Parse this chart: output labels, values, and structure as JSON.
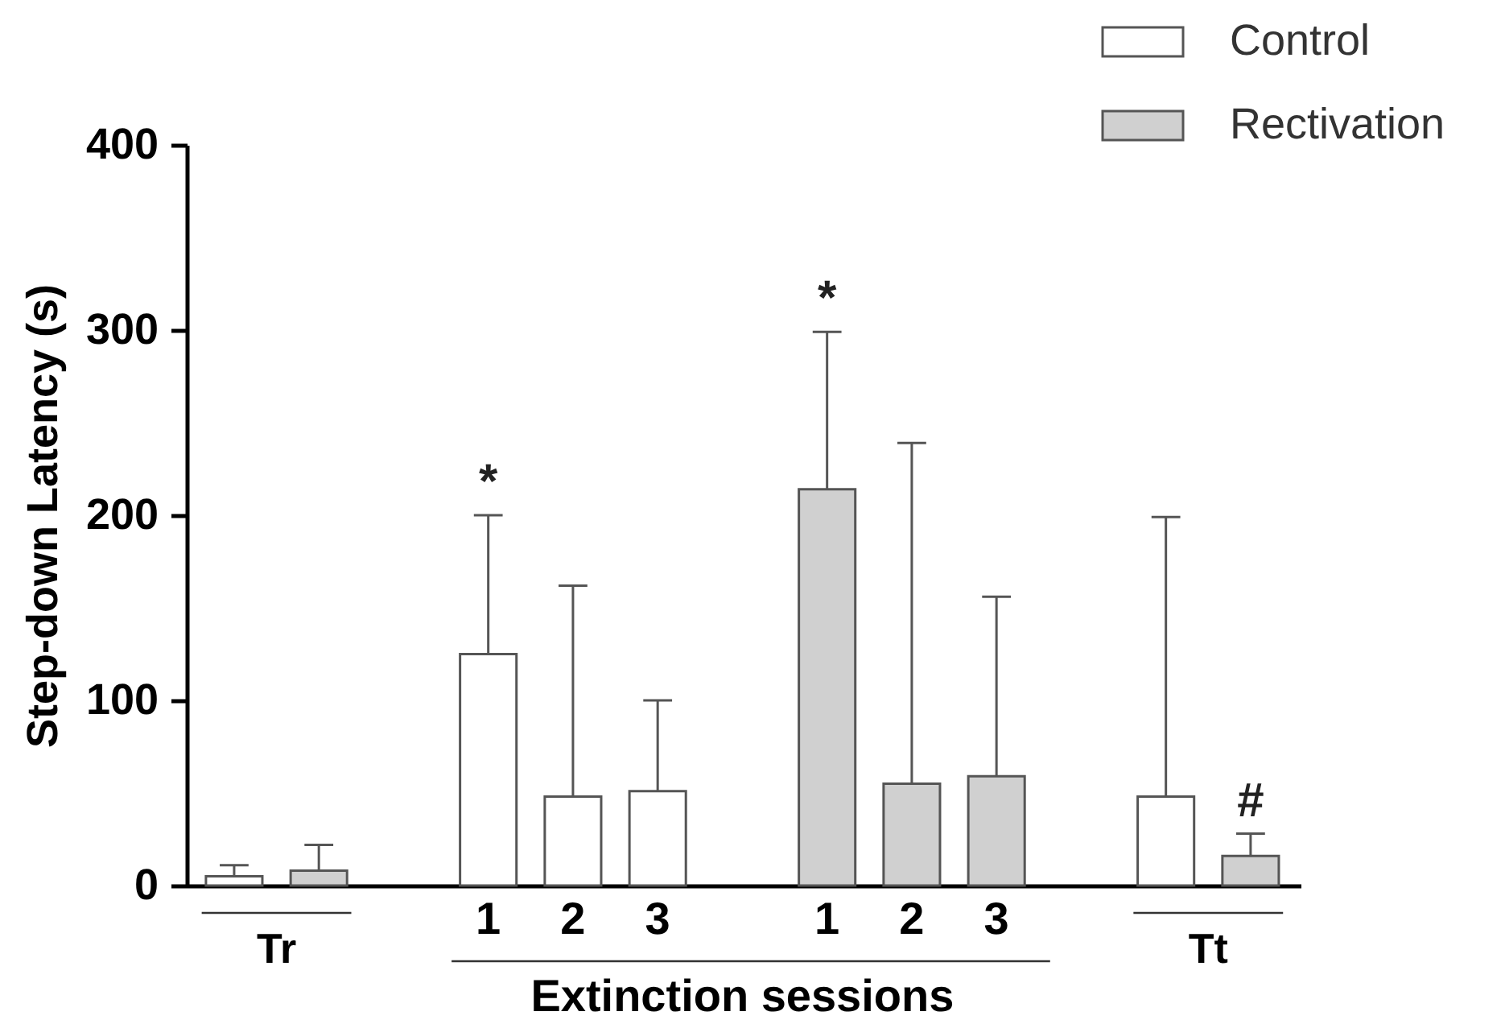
{
  "chart_data": {
    "type": "bar",
    "categories": [
      null,
      null,
      null,
      "1",
      "2",
      "3",
      null,
      "1",
      "2",
      "3",
      null,
      null,
      null
    ],
    "xlabel": "Extinction sessions",
    "ylabel": "Step-down Latency (s)",
    "series": [
      {
        "name": "Control",
        "color": "#ffffff",
        "values": [
          5,
          null,
          null,
          125,
          48,
          51,
          null,
          null,
          null,
          null,
          null,
          48,
          null
        ],
        "errors": [
          [
            5,
            11
          ],
          null,
          null,
          [
            125,
            200
          ],
          [
            48,
            162
          ],
          [
            51,
            100
          ],
          null,
          null,
          null,
          null,
          null,
          [
            48,
            199
          ],
          null
        ]
      },
      {
        "name": "Rectivation",
        "color": "#d0d0d0",
        "values": [
          null,
          8,
          null,
          null,
          null,
          null,
          null,
          214,
          55,
          59,
          null,
          null,
          16
        ],
        "errors": [
          null,
          [
            8,
            22
          ],
          null,
          null,
          null,
          null,
          null,
          [
            214,
            299
          ],
          [
            55,
            239
          ],
          [
            59,
            156
          ],
          null,
          null,
          [
            16,
            28
          ]
        ]
      }
    ],
    "ylim": [
      0,
      400
    ],
    "yticks": [
      0,
      100,
      200,
      300,
      400
    ],
    "legend": "top right",
    "annotations": [
      "*",
      "*",
      "#",
      "Tr",
      "Tt"
    ]
  }
}
